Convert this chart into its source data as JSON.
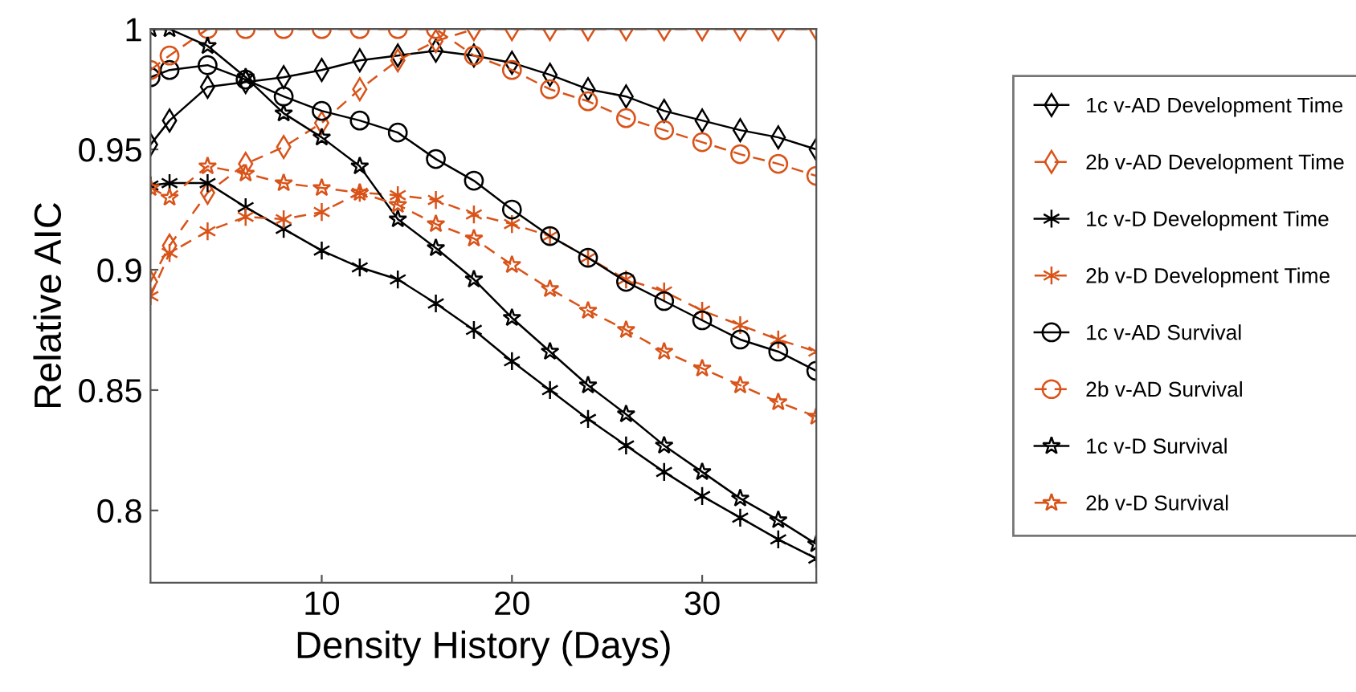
{
  "chart_data": {
    "type": "line",
    "xlabel": "Density History (Days)",
    "ylabel": "Relative AIC",
    "x": [
      1,
      2,
      4,
      6,
      8,
      10,
      12,
      14,
      16,
      18,
      20,
      22,
      24,
      26,
      28,
      30,
      32,
      34,
      36
    ],
    "xlim": [
      1,
      36
    ],
    "xticks": [
      10,
      20,
      30
    ],
    "ylim": [
      0.77,
      1
    ],
    "yticks": [
      0.8,
      0.85,
      0.9,
      0.95,
      1
    ],
    "grid": false,
    "legend": "right",
    "series": [
      {
        "name": "1c v-AD Development Time",
        "color": "#000000",
        "marker": "diamond",
        "line_style": "solid",
        "values": [
          0.952,
          0.962,
          0.976,
          0.978,
          0.98,
          0.983,
          0.987,
          0.989,
          0.991,
          0.989,
          0.986,
          0.981,
          0.975,
          0.972,
          0.966,
          0.962,
          0.958,
          0.955,
          0.95
        ]
      },
      {
        "name": "2b v-AD Development Time",
        "color": "#d95319",
        "marker": "diamond",
        "line_style": "dashed",
        "values": [
          0.895,
          0.91,
          0.932,
          0.944,
          0.951,
          0.961,
          0.975,
          0.987,
          0.995,
          1.0,
          1.0,
          1.0,
          1.0,
          1.0,
          1.0,
          1.0,
          1.0,
          1.0,
          1.0
        ]
      },
      {
        "name": "1c v-D Development Time",
        "color": "#000000",
        "marker": "cross",
        "line_style": "solid",
        "values": [
          0.935,
          0.936,
          0.936,
          0.926,
          0.917,
          0.908,
          0.901,
          0.896,
          0.886,
          0.875,
          0.862,
          0.85,
          0.838,
          0.827,
          0.816,
          0.806,
          0.797,
          0.788,
          0.78
        ]
      },
      {
        "name": "2b v-D Development Time",
        "color": "#d95319",
        "marker": "cross",
        "line_style": "dashed",
        "values": [
          0.889,
          0.907,
          0.916,
          0.922,
          0.921,
          0.924,
          0.932,
          0.931,
          0.929,
          0.923,
          0.919,
          0.914,
          0.905,
          0.896,
          0.891,
          0.883,
          0.877,
          0.871,
          0.866
        ]
      },
      {
        "name": "1c v-AD Survival",
        "color": "#000000",
        "marker": "circle",
        "line_style": "solid",
        "values": [
          0.98,
          0.983,
          0.985,
          0.979,
          0.972,
          0.966,
          0.962,
          0.957,
          0.946,
          0.937,
          0.925,
          0.914,
          0.905,
          0.895,
          0.887,
          0.879,
          0.871,
          0.866,
          0.858
        ]
      },
      {
        "name": "2b v-AD Survival",
        "color": "#d95319",
        "marker": "circle",
        "line_style": "dashed",
        "values": [
          0.983,
          0.989,
          1.0,
          1.0,
          1.0,
          1.0,
          1.0,
          1.0,
          1.0,
          0.989,
          0.983,
          0.975,
          0.97,
          0.963,
          0.958,
          0.953,
          0.948,
          0.944,
          0.939
        ]
      },
      {
        "name": "1c v-D Survival",
        "color": "#000000",
        "marker": "star",
        "line_style": "solid",
        "values": [
          1.0,
          1.0,
          0.993,
          0.98,
          0.965,
          0.955,
          0.943,
          0.921,
          0.909,
          0.896,
          0.88,
          0.866,
          0.852,
          0.84,
          0.827,
          0.816,
          0.805,
          0.796,
          0.786
        ]
      },
      {
        "name": "2b v-D Survival",
        "color": "#d95319",
        "marker": "star",
        "line_style": "dashed",
        "values": [
          0.934,
          0.93,
          0.943,
          0.94,
          0.936,
          0.934,
          0.932,
          0.927,
          0.919,
          0.913,
          0.902,
          0.892,
          0.883,
          0.875,
          0.866,
          0.859,
          0.852,
          0.845,
          0.839
        ]
      }
    ]
  }
}
